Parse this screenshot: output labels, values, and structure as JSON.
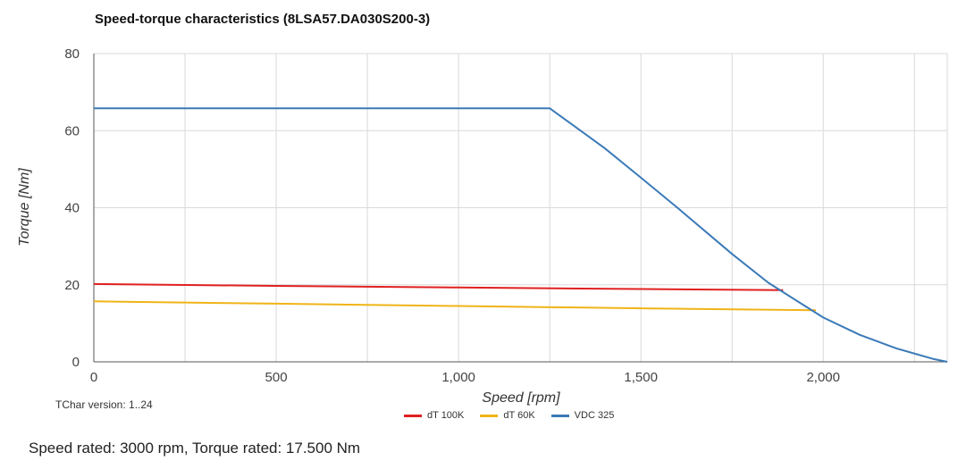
{
  "chart_data": {
    "type": "line",
    "title": "Speed-torque characteristics (8LSA57.DA030S200-3)",
    "xlabel": "Speed [rpm]",
    "ylabel": "Torque [Nm]",
    "xlim": [
      0,
      2340
    ],
    "ylim": [
      0,
      80
    ],
    "x_ticks": [
      0,
      500,
      1000,
      1500,
      2000
    ],
    "x_tick_labels": [
      "0",
      "500",
      "1,000",
      "1,500",
      "2,000"
    ],
    "y_ticks": [
      0,
      20,
      40,
      60,
      80
    ],
    "y_tick_labels": [
      "0",
      "20",
      "40",
      "60",
      "80"
    ],
    "x_grid": [
      0,
      250,
      500,
      750,
      1000,
      1250,
      1500,
      1750,
      2000,
      2250
    ],
    "grid": true,
    "legend": "bottom-center",
    "series": [
      {
        "name": "dT 100K",
        "color": "#e02020",
        "points": [
          [
            0,
            20.2
          ],
          [
            500,
            19.7
          ],
          [
            1000,
            19.3
          ],
          [
            1500,
            18.9
          ],
          [
            1890,
            18.6
          ]
        ]
      },
      {
        "name": "dT 60K",
        "color": "#f0b418",
        "points": [
          [
            0,
            15.7
          ],
          [
            500,
            15.1
          ],
          [
            1000,
            14.5
          ],
          [
            1500,
            13.9
          ],
          [
            1980,
            13.4
          ]
        ]
      },
      {
        "name": "VDC 325",
        "color": "#3a7ab8",
        "points": [
          [
            0,
            65.8
          ],
          [
            1250,
            65.8
          ],
          [
            1400,
            55.5
          ],
          [
            1500,
            47.8
          ],
          [
            1600,
            40.0
          ],
          [
            1750,
            28.0
          ],
          [
            1850,
            20.5
          ],
          [
            1950,
            14.5
          ],
          [
            2000,
            11.5
          ],
          [
            2100,
            7.0
          ],
          [
            2200,
            3.5
          ],
          [
            2300,
            0.8
          ],
          [
            2340,
            0
          ]
        ]
      }
    ]
  },
  "tchar_version": "TChar version: 1..24",
  "footer": "Speed rated: 3000 rpm, Torque rated: 17.500 Nm"
}
